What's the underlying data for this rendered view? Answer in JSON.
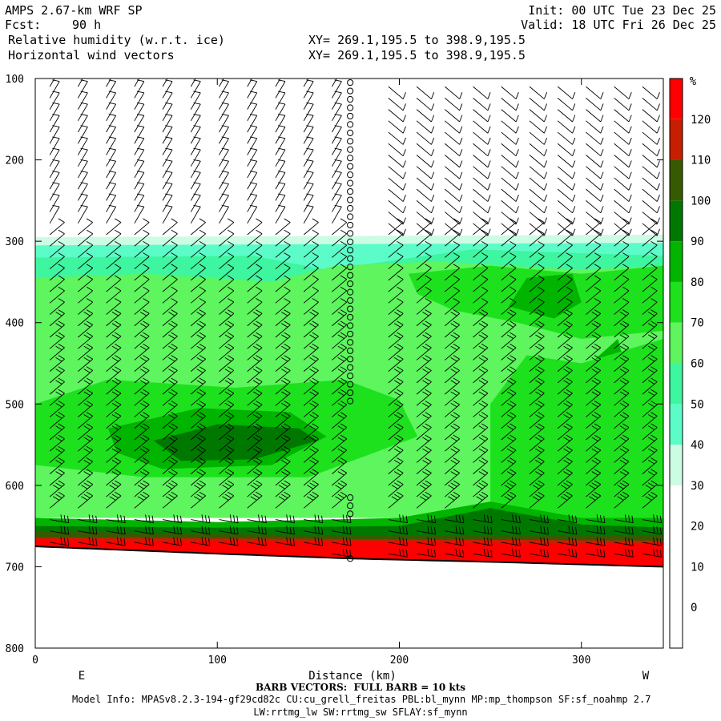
{
  "header": {
    "model": "AMPS 2.67-km WRF SP",
    "fcst_label": "Fcst:",
    "fcst_value": "90 h",
    "init": "Init: 00 UTC Tue 23 Dec 25",
    "valid": "Valid: 18 UTC Fri 26 Dec 25",
    "field1": "Relative humidity (w.r.t. ice)",
    "field2": "Horizontal wind vectors",
    "xy1": "XY= 269.1,195.5 to 398.9,195.5",
    "xy2": "XY= 269.1,195.5 to 398.9,195.5"
  },
  "footer": {
    "barb": "BARB VECTORS:  FULL BARB = 10 kts",
    "model_info": "Model Info: MPASv8.2.3-194-gf29cd82c CU:cu_grell_freitas PBL:bl_mynn MP:mp_thompson SF:sf_noahmp 2.7",
    "model_info2": "LW:rrtmg_lw SW:rrtmg_sw SFLAY:sf_mynn"
  },
  "chart_data": {
    "type": "heatmap",
    "title": "Relative humidity (w.r.t. ice)",
    "xlabel": "Distance (km)",
    "ylabel": "",
    "x_ticks": [
      0,
      100,
      200,
      300
    ],
    "y_ticks": [
      100,
      200,
      300,
      400,
      500,
      600,
      700,
      800
    ],
    "xlim": [
      0,
      345
    ],
    "ylim": [
      100,
      800
    ],
    "y_direction": "pressure decreasing upward",
    "x_endpoints": {
      "left": "E",
      "right": "W"
    },
    "colorbar": {
      "unit": "%",
      "labels": [
        120,
        110,
        100,
        90,
        80,
        70,
        60,
        50,
        40,
        30,
        20,
        10,
        0
      ],
      "bands": [
        {
          "range": [
            -10,
            30
          ],
          "color": "#ffffff"
        },
        {
          "range": [
            30,
            40
          ],
          "color": "#ccfce4"
        },
        {
          "range": [
            40,
            50
          ],
          "color": "#5cfcc8"
        },
        {
          "range": [
            50,
            60
          ],
          "color": "#3ef5a0"
        },
        {
          "range": [
            60,
            70
          ],
          "color": "#5ef55e"
        },
        {
          "range": [
            70,
            80
          ],
          "color": "#1ee11e"
        },
        {
          "range": [
            80,
            90
          ],
          "color": "#00b400"
        },
        {
          "range": [
            90,
            100
          ],
          "color": "#007800"
        },
        {
          "range": [
            100,
            110
          ],
          "color": "#375a00"
        },
        {
          "range": [
            110,
            120
          ],
          "color": "#c81e00"
        },
        {
          "range": [
            120,
            130
          ],
          "color": "#ff0000"
        }
      ]
    },
    "moist_layer_top_hpa": 295,
    "terrain_surface_hpa": {
      "x": [
        0,
        100,
        175,
        250,
        345
      ],
      "p": [
        675,
        684,
        690,
        694,
        700
      ]
    },
    "station_marker_x_km": 173,
    "wind_barbs": "Horizontal wind vectors, full barb = 10 kts"
  }
}
